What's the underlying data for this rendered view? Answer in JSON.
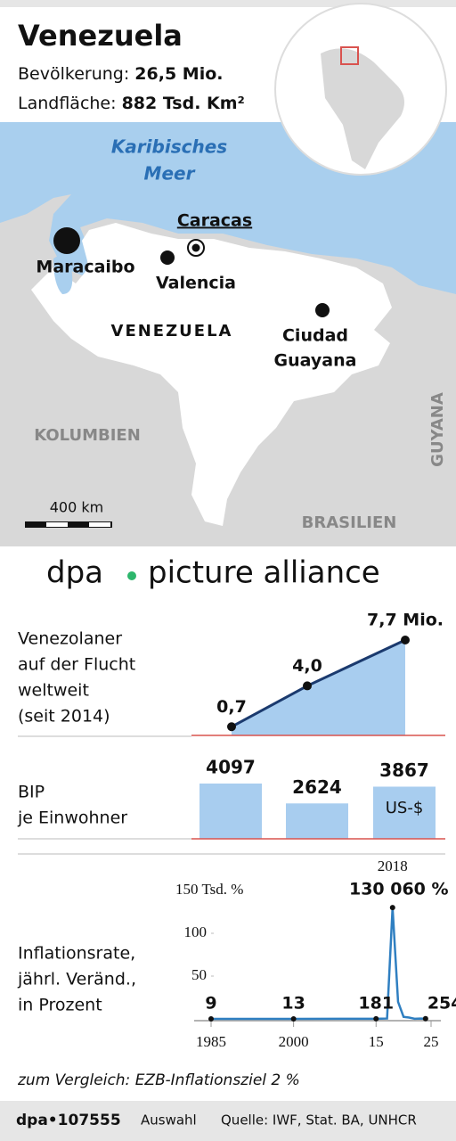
{
  "header": {
    "title": "Venezuela",
    "population_label": "Bevölkerung:",
    "population": "26,5 Mio.",
    "area_label": "Landfläche:",
    "area": "882 Tsd. Km²"
  },
  "map": {
    "sea_lines": [
      "Karibisches",
      "Meer"
    ],
    "capital": "Caracas",
    "cities": [
      "Maracaibo",
      "Valencia"
    ],
    "guayana_lines": [
      "Ciudad",
      "Guayana"
    ],
    "country": "VENEZUELA",
    "neighbors": [
      "KOLUMBIEN",
      "BRASILIEN",
      "GUYANA"
    ],
    "scale": "400 km"
  },
  "watermark": [
    "dpa",
    "picture alliance"
  ],
  "chart_data": [
    {
      "type": "area",
      "title_lines": [
        "Venezolaner",
        "auf der Flucht",
        "weltweit",
        "(seit 2014)"
      ],
      "categories": [
        null,
        null,
        null
      ],
      "values": [
        0.7,
        4.0,
        7.7
      ],
      "value_labels": [
        "0,7",
        "4,0",
        "7,7 Mio."
      ],
      "color": "#a8cdef",
      "line_color": "#1b3a6e",
      "baseline_color": "#d9534f"
    },
    {
      "type": "bar",
      "title_lines": [
        "BIP",
        "je Einwohner"
      ],
      "categories": [
        null,
        null,
        null
      ],
      "values": [
        4097,
        2624,
        3867
      ],
      "unit": "US-$",
      "color": "#a8cdef",
      "baseline_color": "#d9534f"
    },
    {
      "type": "line",
      "title_lines": [
        "Inflationsrate,",
        "jährl. Veränd.,",
        "in Prozent"
      ],
      "note": "zum Vergleich: EZB-Inflationsziel 2 %",
      "x": [
        1985,
        2000,
        2015,
        2016,
        2017,
        2018,
        2019,
        2020,
        2021,
        2022,
        2023,
        2024
      ],
      "values": [
        0.009,
        0.013,
        0.181,
        0.255,
        0.438,
        130.06,
        19.906,
        2.355,
        1.588,
        0.186,
        0.337,
        0.254
      ],
      "value_labels": [
        "9",
        "13",
        "181",
        null,
        null,
        "130 060 %",
        null,
        null,
        null,
        null,
        null,
        "254"
      ],
      "color": "#2f7fc1",
      "xlim": [
        1985,
        2025
      ],
      "xticks": [
        1985,
        2000,
        {
          "value": 2015,
          "label": "15"
        },
        {
          "value": 2025,
          "label": "25"
        }
      ],
      "ylim": [
        0,
        150
      ],
      "yticks": [
        50,
        100,
        {
          "value": 150,
          "label": "150 Tsd. %"
        }
      ]
    }
  ],
  "footer": {
    "id": "dpa•107555",
    "selection": "Auswahl",
    "source": "Quelle: IWF, Stat. BA, UNHCR"
  }
}
